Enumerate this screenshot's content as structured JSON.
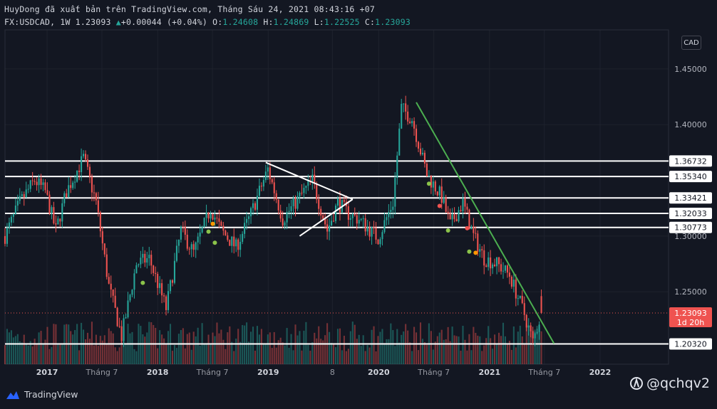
{
  "header": {
    "line1": "HuyDong đã xuất bản trên TradingView.com, Tháng Sáu 24, 2021 08:43:16 +07",
    "symbol": "FX:USDCAD, 1W",
    "last": "1.23093",
    "change": "+0.00044 (+0.04%)",
    "o_label": "O:",
    "o": "1.24608",
    "h_label": "H:",
    "h": "1.24869",
    "l_label": "L:",
    "l": "1.22525",
    "c_label": "C:",
    "c": "1.23093"
  },
  "currency_badge": "CAD",
  "footer": {
    "brand": "TradingView",
    "watermark": "@qchqv2"
  },
  "colors": {
    "background": "#131722",
    "up": "#26a69a",
    "down": "#ef5350",
    "trendline": "#4caf50",
    "level_line": "#ffffff",
    "grid": "#1e222d"
  },
  "chart_data": {
    "type": "candlestick",
    "symbol": "FX:USDCAD",
    "interval": "1W",
    "ylim": [
      1.185,
      1.485
    ],
    "xlim": [
      "2016-08-15",
      "2022-08-15"
    ],
    "y_ticks": [
      "1.45000",
      "1.40000",
      "1.30000",
      "1.25000"
    ],
    "x_ticks": [
      {
        "label": "2017",
        "date": "2017-01-01"
      },
      {
        "label": "Tháng 7",
        "date": "2017-07-01"
      },
      {
        "label": "2018",
        "date": "2018-01-01"
      },
      {
        "label": "Tháng 7",
        "date": "2018-07-01"
      },
      {
        "label": "2019",
        "date": "2019-01-01"
      },
      {
        "label": "8",
        "date": "2019-08-01"
      },
      {
        "label": "2020",
        "date": "2020-01-01"
      },
      {
        "label": "Tháng 7",
        "date": "2020-07-01"
      },
      {
        "label": "2021",
        "date": "2021-01-01"
      },
      {
        "label": "Tháng 7",
        "date": "2021-07-01"
      },
      {
        "label": "2022",
        "date": "2022-01-01"
      }
    ],
    "horizontal_levels": [
      "1.36732",
      "1.35340",
      "1.33421",
      "1.32033",
      "1.30773",
      "1.20320"
    ],
    "last_price": {
      "value": "1.23093",
      "countdown": "1d 20h"
    },
    "ohlc_last": {
      "open": 1.24608,
      "high": 1.24869,
      "low": 1.22525,
      "close": 1.23093
    },
    "price_path": [
      [
        "2016-08-15",
        1.3
      ],
      [
        "2016-10-03",
        1.33
      ],
      [
        "2016-11-21",
        1.35
      ],
      [
        "2016-12-26",
        1.34
      ],
      [
        "2017-01-30",
        1.305
      ],
      [
        "2017-03-06",
        1.34
      ],
      [
        "2017-05-01",
        1.37
      ],
      [
        "2017-06-12",
        1.33
      ],
      [
        "2017-07-24",
        1.255
      ],
      [
        "2017-09-04",
        1.21
      ],
      [
        "2017-10-23",
        1.275
      ],
      [
        "2017-12-04",
        1.28
      ],
      [
        "2018-01-29",
        1.235
      ],
      [
        "2018-03-19",
        1.305
      ],
      [
        "2018-04-30",
        1.285
      ],
      [
        "2018-06-25",
        1.325
      ],
      [
        "2018-07-30",
        1.305
      ],
      [
        "2018-09-17",
        1.29
      ],
      [
        "2018-10-29",
        1.315
      ],
      [
        "2018-12-31",
        1.36
      ],
      [
        "2019-02-18",
        1.315
      ],
      [
        "2019-04-15",
        1.335
      ],
      [
        "2019-05-27",
        1.35
      ],
      [
        "2019-07-15",
        1.305
      ],
      [
        "2019-08-19",
        1.33
      ],
      [
        "2019-09-23",
        1.32
      ],
      [
        "2019-10-28",
        1.315
      ],
      [
        "2019-12-30",
        1.298
      ],
      [
        "2020-02-17",
        1.33
      ],
      [
        "2020-03-16",
        1.415
      ],
      [
        "2020-04-20",
        1.405
      ],
      [
        "2020-06-08",
        1.355
      ],
      [
        "2020-07-27",
        1.335
      ],
      [
        "2020-08-24",
        1.31
      ],
      [
        "2020-10-05",
        1.33
      ],
      [
        "2020-11-09",
        1.3
      ],
      [
        "2020-12-14",
        1.28
      ],
      [
        "2021-01-25",
        1.275
      ],
      [
        "2021-03-08",
        1.265
      ],
      [
        "2021-04-26",
        1.23
      ],
      [
        "2021-05-24",
        1.205
      ],
      [
        "2021-06-21",
        1.231
      ]
    ],
    "trendlines": [
      {
        "from": [
          "2020-05-04",
          1.42
        ],
        "to": [
          "2021-08-02",
          1.2035
        ],
        "color": "#4caf50"
      },
      {
        "from": [
          "2018-12-24",
          1.366
        ],
        "to": [
          "2019-10-07",
          1.333
        ],
        "color": "#ffffff"
      },
      {
        "from": [
          "2019-04-15",
          1.3
        ],
        "to": [
          "2019-10-07",
          1.333
        ],
        "color": "#ffffff"
      }
    ]
  }
}
